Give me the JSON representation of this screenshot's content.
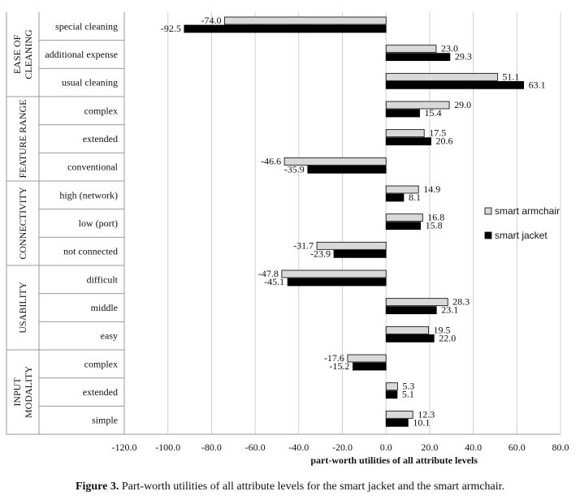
{
  "caption": {
    "label": "Figure 3.",
    "text": "Part-worth utilities of all attribute levels for the smart jacket and the smart armchair."
  },
  "chart_data": {
    "type": "bar",
    "orientation": "horizontal",
    "xlabel": "part-worth  utilities of all attribute levels",
    "ylabel": "",
    "xlim": [
      -120,
      80
    ],
    "xticks": [
      -120,
      -100,
      -80,
      -60,
      -40,
      -20,
      0,
      20,
      40,
      60,
      80
    ],
    "xtick_labels": [
      "-120.0",
      "-100.0",
      "-80.0",
      "-60.0",
      "-40.0",
      "-20.0",
      "0.0",
      "20.0",
      "40.0",
      "60.0",
      "80.0"
    ],
    "grid": "vertical",
    "legend_position": "right",
    "groups": [
      {
        "label": "EASE OF\nCLEANING",
        "levels": [
          "special cleaning",
          "additional expense",
          "usual cleaning"
        ]
      },
      {
        "label": "FEATURE RANGE",
        "levels": [
          "complex",
          "extended",
          "conventional"
        ]
      },
      {
        "label": "CONNECTIVITY",
        "levels": [
          "high (network)",
          "low (port)",
          "not connected"
        ]
      },
      {
        "label": "USABILITY",
        "levels": [
          "difficult",
          "middle",
          "easy"
        ]
      },
      {
        "label": "INPUT\nMODALITY",
        "levels": [
          "complex",
          "extended",
          "simple"
        ]
      }
    ],
    "categories": [
      "special cleaning",
      "additional expense",
      "usual cleaning",
      "complex",
      "extended",
      "conventional",
      "high (network)",
      "low (port)",
      "not connected",
      "difficult",
      "middle",
      "easy",
      "complex",
      "extended",
      "simple"
    ],
    "series": [
      {
        "name": "smart armchair",
        "color": "#d9d9d9",
        "values": [
          -74.0,
          23.0,
          51.1,
          29.0,
          17.5,
          -46.6,
          14.9,
          16.8,
          -31.7,
          -47.8,
          28.3,
          19.5,
          -17.6,
          5.3,
          12.3
        ],
        "labels": [
          "-74.0",
          "23.0",
          "51.1",
          "29.0",
          "17.5",
          "-46.6",
          "14.9",
          "16.8",
          "-31.7",
          "-47.8",
          "28.3",
          "19.5",
          "-17.6",
          "5.3",
          "12.3"
        ]
      },
      {
        "name": "smart jacket",
        "color": "#000000",
        "values": [
          -92.5,
          29.3,
          63.1,
          15.4,
          20.6,
          -35.9,
          8.1,
          15.8,
          -23.9,
          -45.1,
          23.1,
          22.0,
          -15.2,
          5.1,
          10.1
        ],
        "labels": [
          "-92.5",
          "29.3",
          "63.1",
          "15.4",
          "20.6",
          "-35.9",
          "8.1",
          "15.8",
          "-23.9",
          "-45.1",
          "23.1",
          "22.0",
          "-15.2",
          "5.1",
          "10.1"
        ]
      }
    ]
  }
}
